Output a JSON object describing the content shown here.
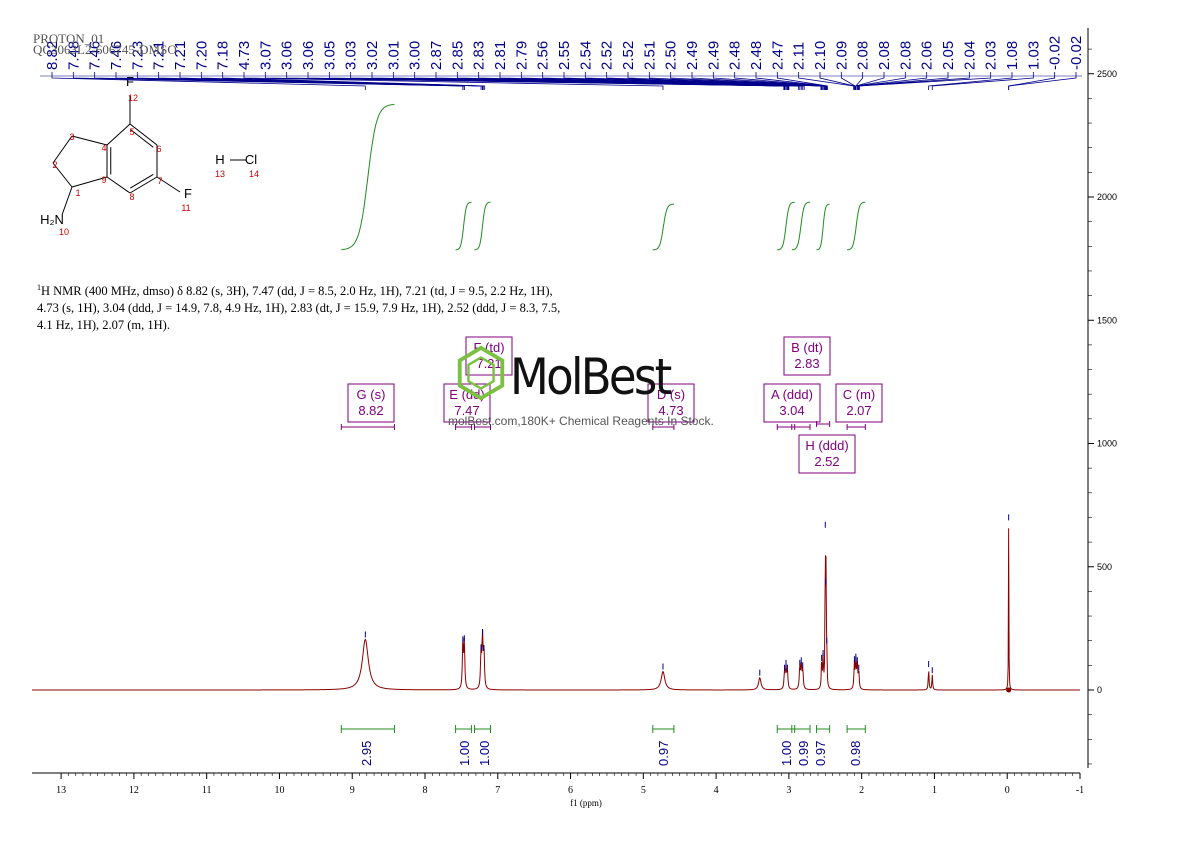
{
  "sample_id_line1": "PROTON_01",
  "sample_id_line2": "QC3063L2-606745-DMSO",
  "nmr_text": {
    "line1_prefix": "1",
    "line1": "H NMR (400 MHz, dmso) δ 8.82 (s, 3H), 7.47 (dd, J = 8.5, 2.0 Hz, 1H), 7.21 (td, J = 9.5, 2.2 Hz, 1H),",
    "line2": "4.73 (s, 1H), 3.04 (ddd, J = 14.9, 7.8, 4.9 Hz, 1H), 2.83 (dt, J = 15.9, 7.9 Hz, 1H), 2.52 (ddd, J = 8.3, 7.5,",
    "line3": "4.1 Hz, 1H), 2.07 (m, 1H)."
  },
  "watermark": {
    "logo": "MolBest",
    "tagline": "molBest.com,180K+ Chemical Reagents In Stock."
  },
  "molecule": {
    "atoms": [
      {
        "label": "F",
        "num": "12"
      },
      {
        "label": "F",
        "num": "11"
      },
      {
        "label": "H",
        "num": "13"
      },
      {
        "label": "Cl",
        "num": "14"
      },
      {
        "label": "H₂N",
        "num": "10"
      }
    ],
    "ring_numbers": [
      "1",
      "2",
      "3",
      "4",
      "5",
      "6",
      "7",
      "8",
      "9"
    ]
  },
  "colors": {
    "spectrum": "#8b0000",
    "peak_labels": "#00008b",
    "integral": "#228b22",
    "multiplet_box": "#800080",
    "atom_number": "#cc0000",
    "axis": "#000000"
  },
  "chart_data": {
    "type": "line",
    "title": "",
    "xlabel": "f1 (ppm)",
    "ylabel": "",
    "xlim": [
      13.4,
      -1
    ],
    "ylim": [
      -350,
      2700
    ],
    "x_ticks": [
      13,
      12,
      11,
      10,
      9,
      8,
      7,
      6,
      5,
      4,
      3,
      2,
      1,
      0,
      -1
    ],
    "x_tick_labels": [
      "13",
      "12",
      "11",
      "10",
      "9",
      "8",
      "7",
      "6",
      "5",
      "4",
      "3",
      "2",
      "1",
      "0",
      "-1"
    ],
    "y_ticks": [
      0,
      500,
      1000,
      1500,
      2000,
      2500
    ],
    "y_tick_labels": [
      "0",
      "500",
      "1000",
      "1500",
      "2000",
      "2500"
    ],
    "peaks": [
      {
        "ppm": 8.82,
        "height": 205,
        "width": 0.05
      },
      {
        "ppm": 7.48,
        "height": 185,
        "width": 0.008
      },
      {
        "ppm": 7.46,
        "height": 190,
        "width": 0.008
      },
      {
        "ppm": 7.23,
        "height": 150,
        "width": 0.008
      },
      {
        "ppm": 7.21,
        "height": 215,
        "width": 0.008
      },
      {
        "ppm": 7.19,
        "height": 150,
        "width": 0.008
      },
      {
        "ppm": 4.73,
        "height": 75,
        "width": 0.03
      },
      {
        "ppm": 3.4,
        "height": 50,
        "width": 0.02
      },
      {
        "ppm": 3.06,
        "height": 70,
        "width": 0.008
      },
      {
        "ppm": 3.04,
        "height": 90,
        "width": 0.008
      },
      {
        "ppm": 3.02,
        "height": 70,
        "width": 0.008
      },
      {
        "ppm": 2.85,
        "height": 90,
        "width": 0.008
      },
      {
        "ppm": 2.83,
        "height": 100,
        "width": 0.008
      },
      {
        "ppm": 2.81,
        "height": 80,
        "width": 0.008
      },
      {
        "ppm": 2.55,
        "height": 110,
        "width": 0.006
      },
      {
        "ppm": 2.53,
        "height": 130,
        "width": 0.006
      },
      {
        "ppm": 2.5,
        "height": 650,
        "width": 0.004
      },
      {
        "ppm": 2.49,
        "height": 420,
        "width": 0.004
      },
      {
        "ppm": 2.48,
        "height": 180,
        "width": 0.004
      },
      {
        "ppm": 2.1,
        "height": 105,
        "width": 0.007
      },
      {
        "ppm": 2.08,
        "height": 115,
        "width": 0.007
      },
      {
        "ppm": 2.06,
        "height": 100,
        "width": 0.007
      },
      {
        "ppm": 2.04,
        "height": 70,
        "width": 0.007
      },
      {
        "ppm": 1.08,
        "height": 85,
        "width": 0.006
      },
      {
        "ppm": 1.03,
        "height": 60,
        "width": 0.006
      },
      {
        "ppm": -0.02,
        "height": 680,
        "width": 0.003
      }
    ],
    "peak_labels": [
      "8.82",
      "7.48",
      "7.46",
      "7.46",
      "7.23",
      "7.21",
      "7.21",
      "7.20",
      "7.18",
      "4.73",
      "3.07",
      "3.06",
      "3.06",
      "3.05",
      "3.03",
      "3.02",
      "3.01",
      "3.00",
      "2.87",
      "2.85",
      "2.83",
      "2.81",
      "2.79",
      "2.56",
      "2.55",
      "2.54",
      "2.52",
      "2.52",
      "2.51",
      "2.50",
      "2.49",
      "2.49",
      "2.48",
      "2.48",
      "2.47",
      "2.11",
      "2.10",
      "2.09",
      "2.08",
      "2.08",
      "2.08",
      "2.06",
      "2.05",
      "2.04",
      "2.03",
      "1.08",
      "1.03",
      "-0.02",
      "-0.02"
    ],
    "multiplets": [
      {
        "letter": "G (s)",
        "shift": "8.82",
        "from": 9.15,
        "to": 8.42,
        "row": "low"
      },
      {
        "letter": "F (td)",
        "shift": "7.21",
        "from": 7.32,
        "to": 7.1,
        "row": "high"
      },
      {
        "letter": "E (dd)",
        "shift": "7.47",
        "from": 7.58,
        "to": 7.36,
        "row": "low"
      },
      {
        "letter": "D (s)",
        "shift": "4.73",
        "from": 4.87,
        "to": 4.58,
        "row": "low"
      },
      {
        "letter": "B (dt)",
        "shift": "2.83",
        "from": 2.96,
        "to": 2.71,
        "row": "high"
      },
      {
        "letter": "A (ddd)",
        "shift": "3.04",
        "from": 3.16,
        "to": 2.92,
        "row": "low"
      },
      {
        "letter": "C (m)",
        "shift": "2.07",
        "from": 2.2,
        "to": 1.95,
        "row": "low"
      },
      {
        "letter": "H (ddd)",
        "shift": "2.52",
        "from": 2.62,
        "to": 2.44,
        "row": "bottom"
      }
    ],
    "integrals": [
      {
        "from": 9.15,
        "to": 8.42,
        "value": "2.95",
        "center": 8.82
      },
      {
        "from": 7.58,
        "to": 7.36,
        "value": "1.00",
        "center": 7.47
      },
      {
        "from": 7.32,
        "to": 7.1,
        "value": "1.00",
        "center": 7.21
      },
      {
        "from": 4.87,
        "to": 4.58,
        "value": "0.97",
        "center": 4.73
      },
      {
        "from": 3.16,
        "to": 2.92,
        "value": "1.00",
        "center": 3.04
      },
      {
        "from": 2.96,
        "to": 2.71,
        "value": "0.99",
        "center": 2.83
      },
      {
        "from": 2.62,
        "to": 2.44,
        "value": "0.97",
        "center": 2.52
      },
      {
        "from": 2.2,
        "to": 1.95,
        "value": "0.98",
        "center": 2.07
      }
    ]
  }
}
